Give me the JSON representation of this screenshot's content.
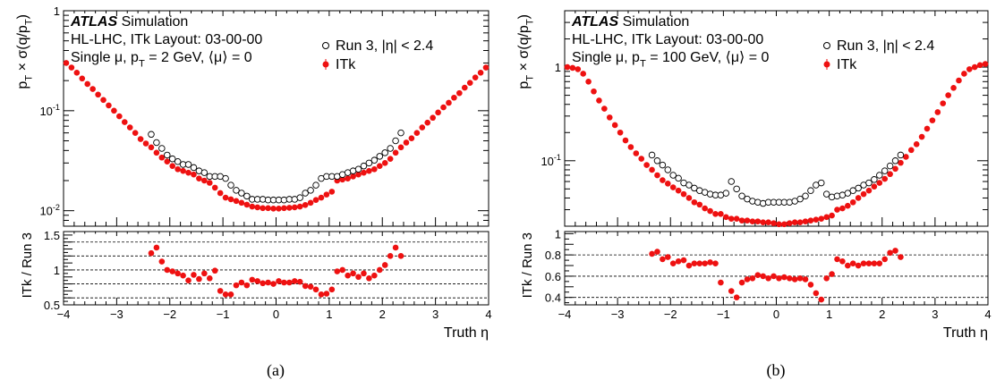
{
  "figure": {
    "panels": [
      {
        "caption": "(a)",
        "label_line1_bold": "ATLAS",
        "label_line1_rest": " Simulation",
        "label_line2": "HL-LHC, ITk Layout: 03-00-00",
        "label_line3": "Single μ, p_T = 2 GeV, ⟨μ⟩ = 0"
      },
      {
        "caption": "(b)",
        "label_line1_bold": "ATLAS",
        "label_line1_rest": " Simulation",
        "label_line2": "HL-LHC, ITk Layout: 03-00-00",
        "label_line3": "Single μ, p_T = 100 GeV, ⟨μ⟩ = 0"
      }
    ],
    "legend": {
      "run3": "Run 3, |η| < 2.4",
      "itk": "ITk"
    },
    "ylabel_top": "p_T × σ(q/p_T)",
    "ylabel_bottom": "ITk / Run 3",
    "xlabel": "Truth η",
    "colors": {
      "itk": "#ee1111",
      "run3": "#000000"
    }
  },
  "chart_data": [
    {
      "type": "scatter",
      "xlim": [
        -4,
        4
      ],
      "top": {
        "yscale": "log",
        "ylim": [
          0.007,
          1
        ],
        "yticks": [
          1,
          0.1,
          0.01
        ],
        "yticklabels": [
          "1",
          "10^-1",
          "10^-2"
        ]
      },
      "ratio": {
        "ylim": [
          0.5,
          1.55
        ],
        "yticks": [
          0.5,
          1,
          1.5
        ],
        "yticklabels": [
          "0.5",
          "1",
          "1.5"
        ],
        "gridlines": [
          0.6,
          0.8,
          1.0,
          1.2,
          1.4
        ]
      },
      "xticks": [
        -4,
        -3,
        -2,
        -1,
        0,
        1,
        2,
        3,
        4
      ],
      "series": [
        {
          "name": "ITk",
          "x": [
            -3.95,
            -3.85,
            -3.75,
            -3.65,
            -3.55,
            -3.45,
            -3.35,
            -3.25,
            -3.15,
            -3.05,
            -2.95,
            -2.85,
            -2.75,
            -2.65,
            -2.55,
            -2.45,
            -2.35,
            -2.25,
            -2.15,
            -2.05,
            -1.95,
            -1.85,
            -1.75,
            -1.65,
            -1.55,
            -1.45,
            -1.35,
            -1.25,
            -1.15,
            -1.05,
            -0.95,
            -0.85,
            -0.75,
            -0.65,
            -0.55,
            -0.45,
            -0.35,
            -0.25,
            -0.15,
            -0.05,
            0.05,
            0.15,
            0.25,
            0.35,
            0.45,
            0.55,
            0.65,
            0.75,
            0.85,
            0.95,
            1.05,
            1.15,
            1.25,
            1.35,
            1.45,
            1.55,
            1.65,
            1.75,
            1.85,
            1.95,
            2.05,
            2.15,
            2.25,
            2.35,
            2.45,
            2.55,
            2.65,
            2.75,
            2.85,
            2.95,
            3.05,
            3.15,
            3.25,
            3.35,
            3.45,
            3.55,
            3.65,
            3.75,
            3.85,
            3.95
          ],
          "y": [
            0.3,
            0.27,
            0.24,
            0.21,
            0.185,
            0.165,
            0.145,
            0.128,
            0.113,
            0.1,
            0.088,
            0.077,
            0.068,
            0.06,
            0.052,
            0.047,
            0.043,
            0.038,
            0.034,
            0.031,
            0.028,
            0.026,
            0.025,
            0.024,
            0.023,
            0.021,
            0.02,
            0.019,
            0.017,
            0.015,
            0.0135,
            0.013,
            0.0125,
            0.012,
            0.0115,
            0.011,
            0.0108,
            0.0106,
            0.0106,
            0.0105,
            0.0105,
            0.0106,
            0.0107,
            0.0108,
            0.011,
            0.0114,
            0.012,
            0.0128,
            0.0135,
            0.0145,
            0.0155,
            0.02,
            0.0205,
            0.021,
            0.022,
            0.023,
            0.024,
            0.025,
            0.026,
            0.028,
            0.03,
            0.033,
            0.038,
            0.043,
            0.048,
            0.053,
            0.06,
            0.068,
            0.076,
            0.085,
            0.096,
            0.108,
            0.12,
            0.135,
            0.15,
            0.17,
            0.19,
            0.215,
            0.24,
            0.27
          ]
        },
        {
          "name": "Run 3, |η| < 2.4",
          "x": [
            -2.35,
            -2.25,
            -2.15,
            -2.05,
            -1.95,
            -1.85,
            -1.75,
            -1.65,
            -1.55,
            -1.45,
            -1.35,
            -1.25,
            -1.15,
            -1.05,
            -0.95,
            -0.85,
            -0.75,
            -0.65,
            -0.55,
            -0.45,
            -0.35,
            -0.25,
            -0.15,
            -0.05,
            0.05,
            0.15,
            0.25,
            0.35,
            0.45,
            0.55,
            0.65,
            0.75,
            0.85,
            0.95,
            1.05,
            1.15,
            1.25,
            1.35,
            1.45,
            1.55,
            1.65,
            1.75,
            1.85,
            1.95,
            2.05,
            2.15,
            2.25,
            2.35
          ],
          "y": [
            0.058,
            0.048,
            0.042,
            0.036,
            0.033,
            0.031,
            0.029,
            0.029,
            0.027,
            0.025,
            0.024,
            0.022,
            0.022,
            0.022,
            0.021,
            0.018,
            0.016,
            0.015,
            0.014,
            0.013,
            0.013,
            0.013,
            0.0128,
            0.0128,
            0.0128,
            0.0128,
            0.013,
            0.013,
            0.0135,
            0.015,
            0.016,
            0.018,
            0.021,
            0.022,
            0.022,
            0.022,
            0.023,
            0.024,
            0.025,
            0.026,
            0.028,
            0.03,
            0.032,
            0.035,
            0.038,
            0.042,
            0.05,
            0.06
          ]
        }
      ],
      "ratio_series": {
        "name": "ITk / Run 3",
        "x": [
          -2.35,
          -2.25,
          -2.15,
          -2.05,
          -1.95,
          -1.85,
          -1.75,
          -1.65,
          -1.55,
          -1.45,
          -1.35,
          -1.25,
          -1.15,
          -1.05,
          -0.95,
          -0.85,
          -0.75,
          -0.65,
          -0.55,
          -0.45,
          -0.35,
          -0.25,
          -0.15,
          -0.05,
          0.05,
          0.15,
          0.25,
          0.35,
          0.45,
          0.55,
          0.65,
          0.75,
          0.85,
          0.95,
          1.05,
          1.15,
          1.25,
          1.35,
          1.45,
          1.55,
          1.65,
          1.75,
          1.85,
          1.95,
          2.05,
          2.15,
          2.25,
          2.35
        ],
        "y": [
          1.24,
          1.32,
          1.12,
          1.0,
          0.98,
          0.95,
          0.92,
          0.85,
          0.93,
          0.87,
          0.95,
          0.88,
          0.99,
          0.7,
          0.65,
          0.65,
          0.78,
          0.82,
          0.78,
          0.86,
          0.84,
          0.81,
          0.82,
          0.8,
          0.84,
          0.82,
          0.82,
          0.84,
          0.83,
          0.77,
          0.76,
          0.72,
          0.65,
          0.66,
          0.72,
          0.98,
          1.0,
          0.92,
          0.95,
          0.9,
          0.95,
          0.88,
          0.92,
          1.0,
          1.07,
          1.2,
          1.32,
          1.2
        ]
      }
    },
    {
      "type": "scatter",
      "xlim": [
        -4,
        4
      ],
      "top": {
        "yscale": "log",
        "ylim": [
          0.02,
          4
        ],
        "yticks": [
          1,
          0.1
        ],
        "yticklabels": [
          "1",
          "10^-1"
        ]
      },
      "ratio": {
        "ylim": [
          0.33,
          1.02
        ],
        "yticks": [
          0.4,
          0.6,
          0.8,
          1
        ],
        "yticklabels": [
          "0.4",
          "0.6",
          "0.8",
          "1"
        ],
        "gridlines": [
          0.4,
          0.6,
          0.8
        ]
      },
      "xticks": [
        -4,
        -3,
        -2,
        -1,
        0,
        1,
        2,
        3,
        4
      ],
      "series": [
        {
          "name": "ITk",
          "x": [
            -3.95,
            -3.85,
            -3.75,
            -3.65,
            -3.55,
            -3.45,
            -3.35,
            -3.25,
            -3.15,
            -3.05,
            -2.95,
            -2.85,
            -2.75,
            -2.65,
            -2.55,
            -2.45,
            -2.35,
            -2.25,
            -2.15,
            -2.05,
            -1.95,
            -1.85,
            -1.75,
            -1.65,
            -1.55,
            -1.45,
            -1.35,
            -1.25,
            -1.15,
            -1.05,
            -0.95,
            -0.85,
            -0.75,
            -0.65,
            -0.55,
            -0.45,
            -0.35,
            -0.25,
            -0.15,
            -0.05,
            0.05,
            0.15,
            0.25,
            0.35,
            0.45,
            0.55,
            0.65,
            0.75,
            0.85,
            0.95,
            1.05,
            1.15,
            1.25,
            1.35,
            1.45,
            1.55,
            1.65,
            1.75,
            1.85,
            1.95,
            2.05,
            2.15,
            2.25,
            2.35,
            2.45,
            2.55,
            2.65,
            2.75,
            2.85,
            2.95,
            3.05,
            3.15,
            3.25,
            3.35,
            3.45,
            3.55,
            3.65,
            3.75,
            3.85,
            3.95
          ],
          "y": [
            1.0,
            0.98,
            0.95,
            0.85,
            0.7,
            0.55,
            0.44,
            0.36,
            0.29,
            0.24,
            0.2,
            0.165,
            0.14,
            0.12,
            0.105,
            0.09,
            0.08,
            0.07,
            0.062,
            0.057,
            0.052,
            0.048,
            0.044,
            0.04,
            0.036,
            0.034,
            0.031,
            0.029,
            0.027,
            0.027,
            0.025,
            0.024,
            0.024,
            0.023,
            0.023,
            0.0225,
            0.0225,
            0.022,
            0.022,
            0.0215,
            0.021,
            0.021,
            0.0215,
            0.022,
            0.022,
            0.0225,
            0.023,
            0.0235,
            0.024,
            0.025,
            0.026,
            0.03,
            0.031,
            0.033,
            0.036,
            0.04,
            0.044,
            0.048,
            0.053,
            0.058,
            0.064,
            0.072,
            0.082,
            0.095,
            0.11,
            0.13,
            0.15,
            0.18,
            0.22,
            0.27,
            0.33,
            0.41,
            0.5,
            0.6,
            0.72,
            0.85,
            0.95,
            1.0,
            1.05,
            1.08
          ]
        },
        {
          "name": "Run 3, |η| < 2.4",
          "x": [
            -2.35,
            -2.25,
            -2.15,
            -2.05,
            -1.95,
            -1.85,
            -1.75,
            -1.65,
            -1.55,
            -1.45,
            -1.35,
            -1.25,
            -1.15,
            -1.05,
            -0.95,
            -0.85,
            -0.75,
            -0.65,
            -0.55,
            -0.45,
            -0.35,
            -0.25,
            -0.15,
            -0.05,
            0.05,
            0.15,
            0.25,
            0.35,
            0.45,
            0.55,
            0.65,
            0.75,
            0.85,
            0.95,
            1.05,
            1.15,
            1.25,
            1.35,
            1.45,
            1.55,
            1.65,
            1.75,
            1.85,
            1.95,
            2.05,
            2.15,
            2.25,
            2.35
          ],
          "y": [
            0.115,
            0.1,
            0.09,
            0.08,
            0.07,
            0.065,
            0.058,
            0.055,
            0.051,
            0.048,
            0.046,
            0.044,
            0.043,
            0.043,
            0.045,
            0.06,
            0.05,
            0.042,
            0.039,
            0.037,
            0.036,
            0.035,
            0.036,
            0.036,
            0.036,
            0.036,
            0.036,
            0.037,
            0.039,
            0.042,
            0.048,
            0.055,
            0.058,
            0.044,
            0.041,
            0.042,
            0.043,
            0.045,
            0.048,
            0.051,
            0.055,
            0.058,
            0.063,
            0.07,
            0.078,
            0.088,
            0.1,
            0.115
          ]
        }
      ],
      "ratio_series": {
        "name": "ITk / Run 3",
        "x": [
          -2.35,
          -2.25,
          -2.15,
          -2.05,
          -1.95,
          -1.85,
          -1.75,
          -1.65,
          -1.55,
          -1.45,
          -1.35,
          -1.25,
          -1.15,
          -1.05,
          -0.85,
          -0.75,
          -0.65,
          -0.55,
          -0.45,
          -0.35,
          -0.25,
          -0.15,
          -0.05,
          0.05,
          0.15,
          0.25,
          0.35,
          0.45,
          0.55,
          0.65,
          0.75,
          0.85,
          0.95,
          1.05,
          1.15,
          1.25,
          1.35,
          1.45,
          1.55,
          1.65,
          1.75,
          1.85,
          1.95,
          2.05,
          2.15,
          2.25,
          2.35
        ],
        "y": [
          0.81,
          0.83,
          0.76,
          0.78,
          0.72,
          0.74,
          0.75,
          0.7,
          0.72,
          0.72,
          0.72,
          0.73,
          0.72,
          0.54,
          0.46,
          0.4,
          0.54,
          0.57,
          0.58,
          0.61,
          0.6,
          0.58,
          0.6,
          0.58,
          0.59,
          0.58,
          0.57,
          0.58,
          0.57,
          0.52,
          0.44,
          0.38,
          0.58,
          0.62,
          0.76,
          0.74,
          0.7,
          0.72,
          0.7,
          0.72,
          0.72,
          0.72,
          0.72,
          0.76,
          0.82,
          0.84,
          0.78
        ]
      }
    }
  ]
}
